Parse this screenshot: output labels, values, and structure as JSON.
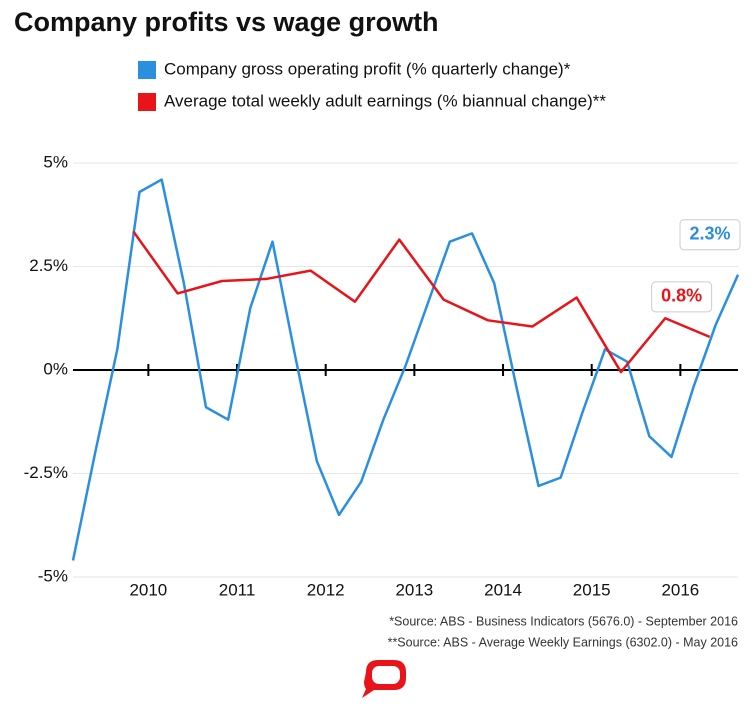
{
  "chart_data": {
    "type": "line",
    "title": "Company profits vs wage growth",
    "series": [
      {
        "name": "Company gross operating profit (% quarterly change)*",
        "color": "#2b8fe0",
        "x": [
          2009.15,
          2009.4,
          2009.65,
          2009.9,
          2010.15,
          2010.4,
          2010.65,
          2010.9,
          2011.15,
          2011.4,
          2011.65,
          2011.9,
          2012.15,
          2012.4,
          2012.65,
          2012.9,
          2013.15,
          2013.4,
          2013.65,
          2013.9,
          2014.15,
          2014.4,
          2014.65,
          2014.9,
          2015.15,
          2015.4,
          2015.65,
          2015.9,
          2016.15,
          2016.4,
          2016.65
        ],
        "values": [
          -4.6,
          -2.0,
          0.5,
          4.3,
          4.6,
          2.1,
          -0.9,
          -1.2,
          1.5,
          3.1,
          0.4,
          -2.2,
          -3.5,
          -2.7,
          -1.2,
          0.1,
          1.6,
          3.1,
          3.3,
          2.1,
          -0.4,
          -2.8,
          -2.6,
          -1.0,
          0.5,
          0.2,
          -1.6,
          -2.1,
          -0.4,
          1.1,
          2.3
        ],
        "value_labels": [
          null,
          null,
          null,
          null,
          null,
          null,
          null,
          null,
          null,
          null,
          null,
          null,
          null,
          null,
          null,
          null,
          null,
          null,
          null,
          null,
          null,
          null,
          null,
          null,
          null,
          null,
          null,
          null,
          null,
          null,
          "2.3%"
        ]
      },
      {
        "name": "Average total weekly adult earnings (% biannual change)**",
        "color": "#e8141a",
        "x": [
          2009.83,
          2010.33,
          2010.83,
          2011.33,
          2011.83,
          2012.33,
          2012.83,
          2013.33,
          2013.83,
          2014.33,
          2014.83,
          2015.33,
          2015.83,
          2016.33
        ],
        "values": [
          3.35,
          1.85,
          2.15,
          2.2,
          2.4,
          1.65,
          3.15,
          1.7,
          1.2,
          1.05,
          1.75,
          -0.05,
          1.25,
          0.8
        ],
        "value_labels": [
          null,
          null,
          null,
          null,
          null,
          null,
          null,
          null,
          null,
          null,
          null,
          null,
          null,
          "0.8%"
        ]
      }
    ],
    "xlim": [
      2009.15,
      2016.65
    ],
    "xticks": [
      2010,
      2011,
      2012,
      2013,
      2014,
      2015,
      2016
    ],
    "ylim": [
      -5,
      5
    ],
    "yticks": [
      {
        "value": 5,
        "label": "5%"
      },
      {
        "value": 2.5,
        "label": "2.5%"
      },
      {
        "value": 0,
        "label": "0%"
      },
      {
        "value": -2.5,
        "label": "-2.5%"
      },
      {
        "value": -5,
        "label": "-5%"
      }
    ],
    "grid": true,
    "notes": [
      "*Source: ABS - Business Indicators (5676.0) - September 2016",
      "**Source: ABS - Average Weekly Earnings (6302.0) - May 2016"
    ]
  }
}
